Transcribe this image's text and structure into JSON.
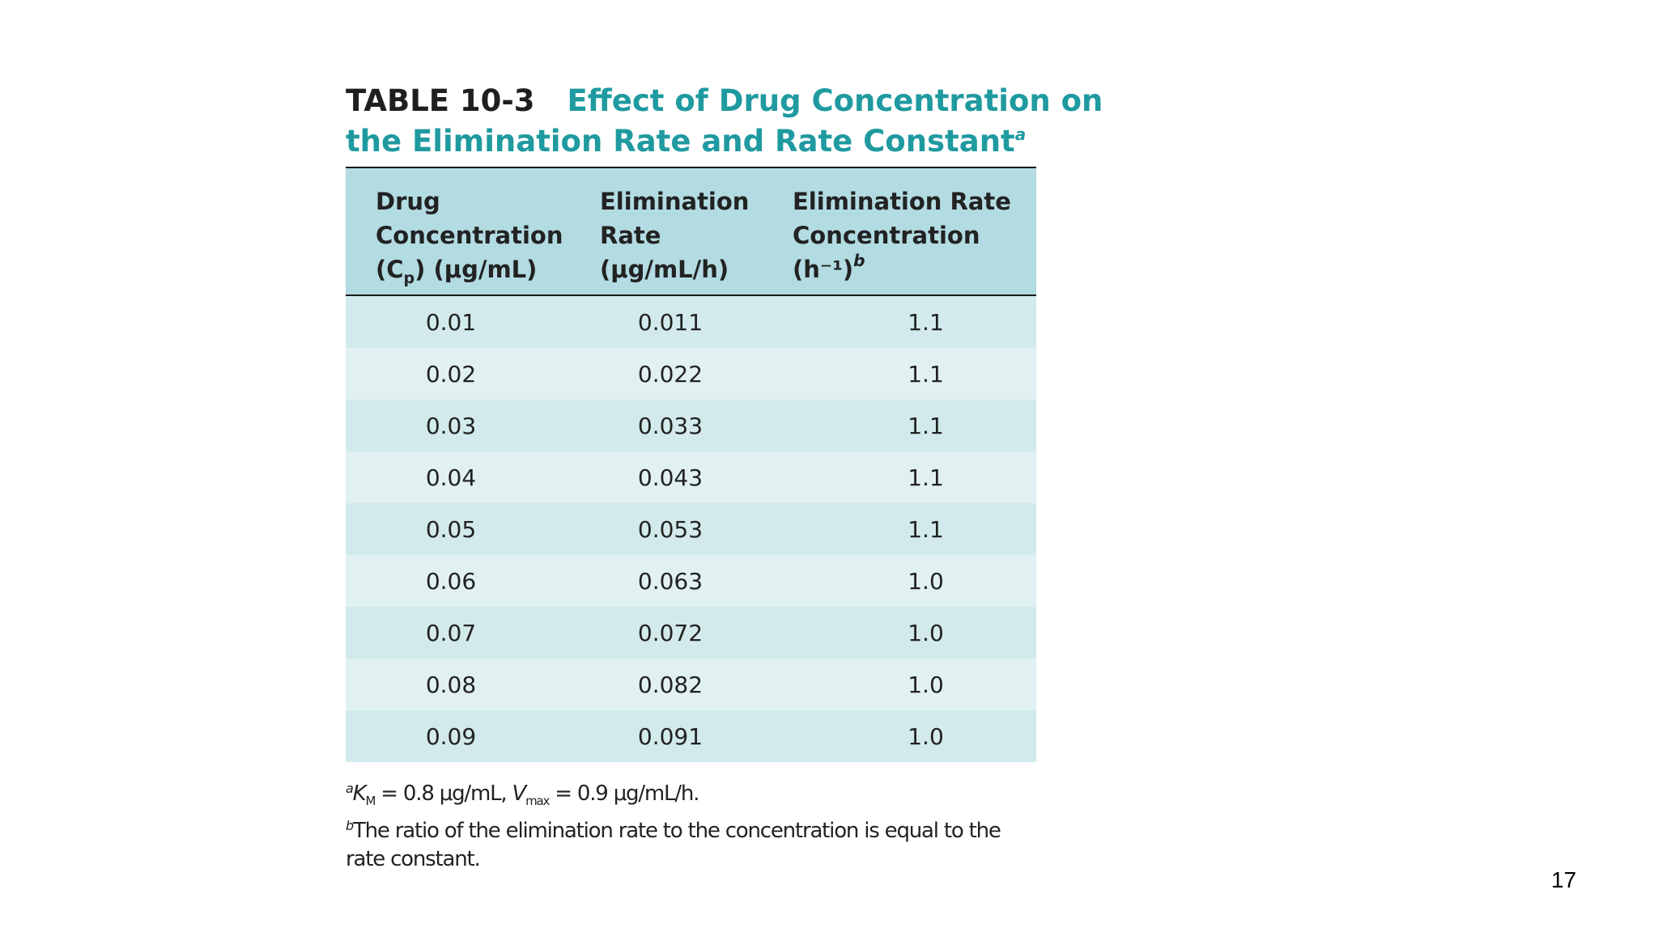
{
  "table": {
    "label": "TABLE 10-3",
    "title_line1": "Effect of Drug Concentration on",
    "title_line2": "the Elimination Rate and Rate Constant",
    "title_mark": "a",
    "headers": {
      "col1": {
        "line1": "Drug",
        "line2": "Concentration",
        "line3_a": "(C",
        "line3_sub": "p",
        "line3_b": ") (μg/mL)"
      },
      "col2": {
        "line1": "Elimination",
        "line2": "Rate",
        "line3": "(μg/mL/h)"
      },
      "col3": {
        "line1": "Elimination Rate",
        "line2": "Concentration",
        "line3": "(h⁻¹)",
        "line3_mark": "b"
      }
    },
    "rows": [
      {
        "concentration": "0.01",
        "elimination_rate": "0.011",
        "ratio": "1.1"
      },
      {
        "concentration": "0.02",
        "elimination_rate": "0.022",
        "ratio": "1.1"
      },
      {
        "concentration": "0.03",
        "elimination_rate": "0.033",
        "ratio": "1.1"
      },
      {
        "concentration": "0.04",
        "elimination_rate": "0.043",
        "ratio": "1.1"
      },
      {
        "concentration": "0.05",
        "elimination_rate": "0.053",
        "ratio": "1.1"
      },
      {
        "concentration": "0.06",
        "elimination_rate": "0.063",
        "ratio": "1.0"
      },
      {
        "concentration": "0.07",
        "elimination_rate": "0.072",
        "ratio": "1.0"
      },
      {
        "concentration": "0.08",
        "elimination_rate": "0.082",
        "ratio": "1.0"
      },
      {
        "concentration": "0.09",
        "elimination_rate": "0.091",
        "ratio": "1.0"
      }
    ]
  },
  "footnotes": {
    "a": {
      "mark": "a",
      "km_symbol": "K",
      "km_sub": "M",
      "km_value": " = 0.8 μg/mL, ",
      "vmax_symbol": "V",
      "vmax_sub": "max",
      "vmax_value": " = 0.9 μg/mL/h."
    },
    "b": {
      "mark": "b",
      "text": "The ratio of the elimination rate to the concentration is equal to the rate constant."
    }
  },
  "page_number": "17",
  "colors": {
    "title_accent": "#1f9aa0",
    "header_bg": "#b2dbe2",
    "row_odd": "#d2eaeb",
    "row_even": "#e1f1f1"
  }
}
